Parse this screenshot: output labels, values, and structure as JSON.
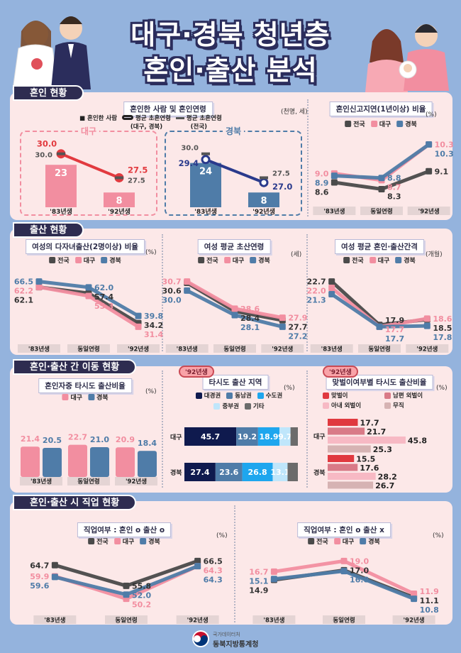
{
  "title": {
    "line1": "대구·경북 청년층",
    "line2": "혼인·출산 분석"
  },
  "sections": [
    {
      "label": "혼인 현황"
    },
    {
      "label": "출산 현황"
    },
    {
      "label": "혼인·출산 간 이동 현황"
    },
    {
      "label": "혼인·출산 시 직업 현황"
    }
  ],
  "legend": {
    "national": "전국",
    "daegu": "대구",
    "gyeongbuk": "경북"
  },
  "colors": {
    "national": "#4a4a4a",
    "daegu": "#f28ea0",
    "gyeongbuk": "#4f7ca8",
    "daegu_line": "#e23a3f",
    "gyeongbuk_line": "#2a3a8c",
    "navy": "#2e2c50",
    "panel": "#fce8e8",
    "background": "#94b3dd"
  },
  "footer": {
    "org_top": "국가데이터처",
    "org_name": "동북지방통계청"
  },
  "chart_data": [
    {
      "type": "bar+line",
      "title": "혼인한 사람 및 혼인연령",
      "unit": "(천명, 세)",
      "legend": [
        "혼인한 사람",
        "평균 초혼연령",
        "(대구, 경북)",
        "평균 초혼연령",
        "(전국)"
      ],
      "categories": [
        "'83년생",
        "'92년생"
      ],
      "panels": [
        {
          "region": "대구",
          "married_thousand": [
            23,
            8
          ],
          "region_age": [
            30.0,
            27.5
          ],
          "national_age": [
            30.0,
            27.5
          ],
          "color": "#e23a3f",
          "bar_color": "#f28ea0"
        },
        {
          "region": "경북",
          "married_thousand": [
            24,
            8
          ],
          "region_age": [
            29.4,
            27.0
          ],
          "national_age": [
            30.0,
            27.5
          ],
          "color": "#2a3a8c",
          "bar_color": "#4f7ca8"
        }
      ]
    },
    {
      "type": "line",
      "title": "혼인신고지연(1년이상) 비율",
      "unit": "(%)",
      "categories": [
        "'83년생",
        "동일연령",
        "'92년생"
      ],
      "series": [
        {
          "name": "전국",
          "values": [
            8.6,
            8.3,
            9.1
          ],
          "color": "#4a4a4a"
        },
        {
          "name": "대구",
          "values": [
            9.0,
            8.7,
            10.3
          ],
          "color": "#f28ea0"
        },
        {
          "name": "경북",
          "values": [
            8.9,
            8.8,
            10.3
          ],
          "color": "#4f7ca8"
        }
      ]
    },
    {
      "type": "line",
      "title": "여성의 다자녀출산(2명이상) 비율",
      "unit": "(%)",
      "categories": [
        "'83년생",
        "동일연령",
        "'92년생"
      ],
      "series": [
        {
          "name": "전국",
          "values": [
            62.1,
            57.4,
            34.2
          ],
          "color": "#4a4a4a"
        },
        {
          "name": "대구",
          "values": [
            62.2,
            55.3,
            31.4
          ],
          "color": "#f28ea0"
        },
        {
          "name": "경북",
          "values": [
            66.5,
            62.0,
            39.8
          ],
          "color": "#4f7ca8"
        }
      ]
    },
    {
      "type": "line",
      "title": "여성 평균 초산연령",
      "unit": "(세)",
      "categories": [
        "'83년생",
        "동일연령",
        "'92년생"
      ],
      "series": [
        {
          "name": "전국",
          "values": [
            30.6,
            28.4,
            27.7
          ],
          "color": "#4a4a4a"
        },
        {
          "name": "대구",
          "values": [
            30.7,
            28.6,
            27.9
          ],
          "color": "#f28ea0"
        },
        {
          "name": "경북",
          "values": [
            30.0,
            28.1,
            27.2
          ],
          "color": "#4f7ca8"
        }
      ]
    },
    {
      "type": "line",
      "title": "여성 평균 혼인·출산간격",
      "unit": "(개월)",
      "categories": [
        "'83년생",
        "동일연령",
        "'92년생"
      ],
      "series": [
        {
          "name": "전국",
          "values": [
            22.7,
            17.9,
            18.5
          ],
          "color": "#4a4a4a"
        },
        {
          "name": "대구",
          "values": [
            22.0,
            17.7,
            18.6
          ],
          "color": "#f28ea0"
        },
        {
          "name": "경북",
          "values": [
            21.3,
            17.7,
            17.8
          ],
          "color": "#4f7ca8"
        }
      ]
    },
    {
      "type": "bar",
      "title": "혼인자중 타시도 출산비율",
      "unit": "(%)",
      "categories": [
        "'83년생",
        "동일연령",
        "'92년생"
      ],
      "series": [
        {
          "name": "대구",
          "values": [
            21.4,
            22.7,
            20.9
          ],
          "color": "#f28ea0"
        },
        {
          "name": "경북",
          "values": [
            20.5,
            21.0,
            18.4
          ],
          "color": "#4f7ca8"
        }
      ]
    },
    {
      "type": "stacked-bar",
      "badge": "'92년생",
      "title": "타시도 출산 지역",
      "unit": "(%)",
      "legend": [
        {
          "name": "대경권",
          "color": "#0f1a4e"
        },
        {
          "name": "동남권",
          "color": "#4f7ca8"
        },
        {
          "name": "수도권",
          "color": "#1ea6ee"
        },
        {
          "name": "중부권",
          "color": "#bfe6fb"
        },
        {
          "name": "기타",
          "color": "#6b6b6b"
        }
      ],
      "rows": [
        {
          "label": "대구",
          "values": [
            45.7,
            19.2,
            18.9,
            9.7
          ]
        },
        {
          "label": "경북",
          "values": [
            27.4,
            23.6,
            26.8,
            13.1
          ]
        }
      ]
    },
    {
      "type": "grouped-hbar",
      "badge": "'92년생",
      "title": "맞벌이여부별 타시도 출산비율",
      "unit": "(%)",
      "legend": [
        {
          "name": "맞벌이",
          "color": "#e0393f"
        },
        {
          "name": "남편 외벌이",
          "color": "#d97a87"
        },
        {
          "name": "아내 외벌이",
          "color": "#f7b9c4"
        },
        {
          "name": "무직",
          "color": "#d6b3b3"
        }
      ],
      "rows": [
        {
          "label": "대구",
          "values": [
            17.7,
            21.7,
            45.8,
            25.3
          ]
        },
        {
          "label": "경북",
          "values": [
            15.5,
            17.6,
            28.2,
            26.7
          ]
        }
      ]
    },
    {
      "type": "line",
      "title": "직업여부 : 혼인 o 출산 o",
      "unit": "(%)",
      "categories": [
        "'83년생",
        "동일연령",
        "'92년생"
      ],
      "series": [
        {
          "name": "전국",
          "values": [
            64.7,
            55.8,
            66.5
          ],
          "color": "#4a4a4a"
        },
        {
          "name": "대구",
          "values": [
            59.9,
            50.2,
            64.3
          ],
          "color": "#f28ea0"
        },
        {
          "name": "경북",
          "values": [
            59.6,
            52.0,
            64.3
          ],
          "color": "#4f7ca8"
        }
      ]
    },
    {
      "type": "line",
      "title": "직업여부 : 혼인 o 출산 x",
      "unit": "(%)",
      "categories": [
        "'83년생",
        "동일연령",
        "'92년생"
      ],
      "series": [
        {
          "name": "전국",
          "values": [
            14.9,
            17.0,
            11.1
          ],
          "color": "#4a4a4a"
        },
        {
          "name": "대구",
          "values": [
            16.7,
            19.0,
            11.9
          ],
          "color": "#f28ea0"
        },
        {
          "name": "경북",
          "values": [
            15.1,
            16.8,
            10.8
          ],
          "color": "#4f7ca8"
        }
      ]
    }
  ]
}
